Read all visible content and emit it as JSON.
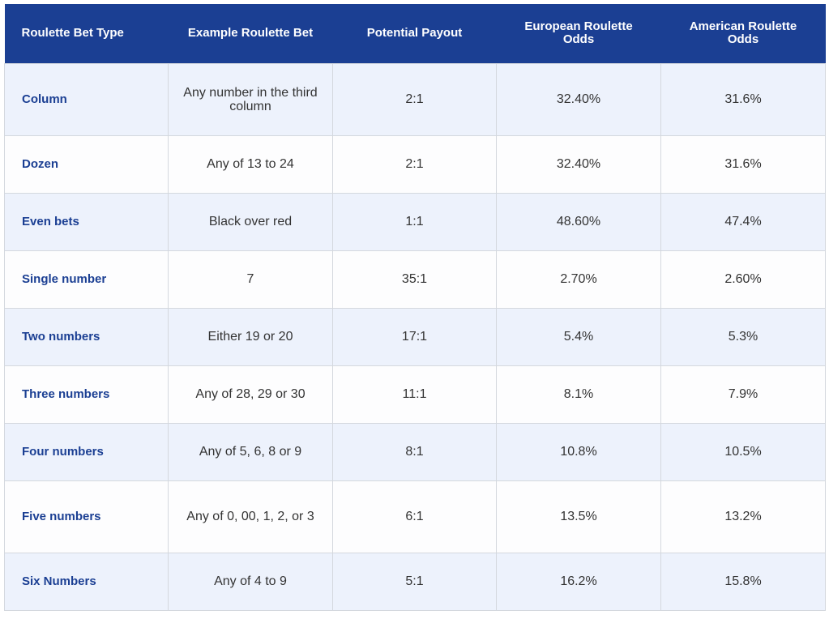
{
  "table": {
    "headers": [
      "Roulette Bet Type",
      "Example Roulette Bet",
      "Potential Payout",
      "European Roulette Odds",
      "American Roulette Odds"
    ],
    "rows": [
      {
        "type": "Column",
        "example": "Any number in the third column",
        "payout": "2:1",
        "european": "32.40%",
        "american": "31.6%"
      },
      {
        "type": "Dozen",
        "example": "Any of 13 to 24",
        "payout": "2:1",
        "european": "32.40%",
        "american": "31.6%"
      },
      {
        "type": "Even bets",
        "example": "Black over red",
        "payout": "1:1",
        "european": "48.60%",
        "american": "47.4%"
      },
      {
        "type": "Single number",
        "example": "7",
        "payout": "35:1",
        "european": "2.70%",
        "american": "2.60%"
      },
      {
        "type": "Two numbers",
        "example": "Either 19 or 20",
        "payout": "17:1",
        "european": "5.4%",
        "american": "5.3%"
      },
      {
        "type": "Three numbers",
        "example": "Any of 28, 29 or 30",
        "payout": "11:1",
        "european": "8.1%",
        "american": "7.9%"
      },
      {
        "type": "Four numbers",
        "example": "Any of 5, 6, 8 or 9",
        "payout": "8:1",
        "european": "10.8%",
        "american": "10.5%"
      },
      {
        "type": "Five numbers",
        "example": "Any of 0, 00, 1, 2, or 3",
        "payout": "6:1",
        "european": "13.5%",
        "american": "13.2%"
      },
      {
        "type": "Six Numbers",
        "example": "Any of 4 to 9",
        "payout": "5:1",
        "european": "16.2%",
        "american": "15.8%"
      }
    ]
  },
  "colors": {
    "header_bg": "#1b3f93",
    "header_text": "#ffffff",
    "bet_type_text": "#1b3f93",
    "row_alt_bg": "#edf2fc",
    "row_bg": "#fdfdfe",
    "border": "#d4d8de"
  }
}
